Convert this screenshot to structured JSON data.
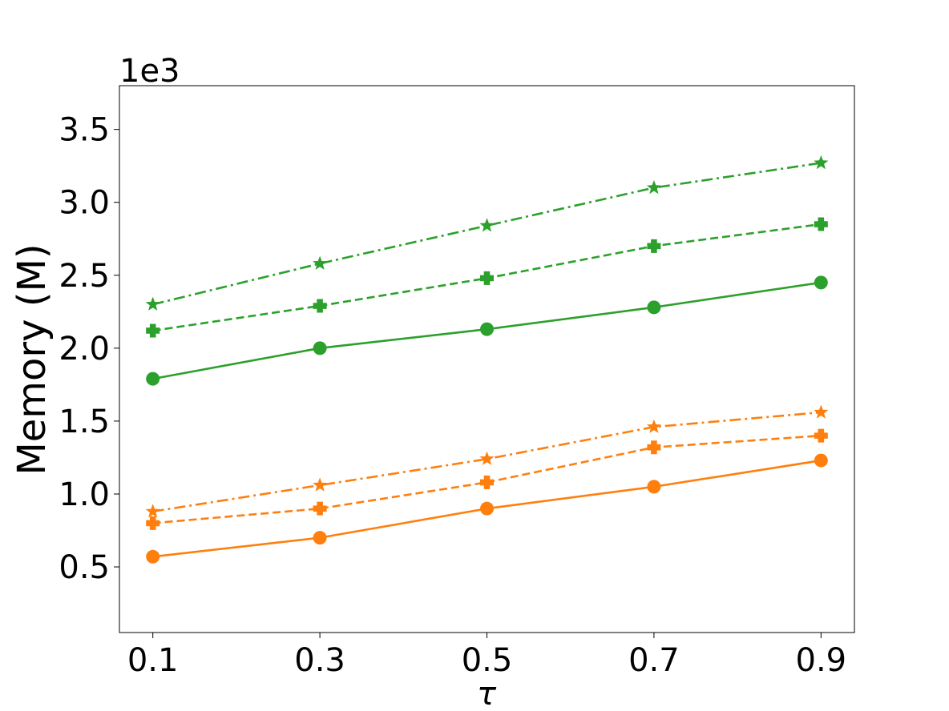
{
  "chart_data": {
    "type": "line",
    "ylabel": "Memory (M)",
    "xlabel": "τ",
    "y_offset_label": "1e3",
    "x": [
      0.1,
      0.3,
      0.5,
      0.7,
      0.9
    ],
    "x_tick_labels": [
      "0.1",
      "0.3",
      "0.5",
      "0.7",
      "0.9"
    ],
    "y_ticks": [
      0.5,
      1.0,
      1.5,
      2.0,
      2.5,
      3.0,
      3.5
    ],
    "y_tick_labels": [
      "0.5",
      "1.0",
      "1.5",
      "2.0",
      "2.5",
      "3.0",
      "3.5"
    ],
    "xlim": [
      0.06,
      0.94
    ],
    "ylim": [
      0.05,
      3.8
    ],
    "y_scale_note": "values in thousands (×1e3)",
    "grid": false,
    "legend": "none",
    "colors": {
      "green": "#2ca02c",
      "orange": "#ff7f0e"
    },
    "series": [
      {
        "color": "#2ca02c",
        "marker": "star",
        "linestyle": "dashdot",
        "values": [
          2.3,
          2.58,
          2.84,
          3.1,
          3.27
        ]
      },
      {
        "color": "#2ca02c",
        "marker": "plus",
        "linestyle": "dashed",
        "values": [
          2.12,
          2.29,
          2.48,
          2.7,
          2.85
        ]
      },
      {
        "color": "#2ca02c",
        "marker": "circle",
        "linestyle": "solid",
        "values": [
          1.79,
          2.0,
          2.13,
          2.28,
          2.45
        ]
      },
      {
        "color": "#ff7f0e",
        "marker": "star",
        "linestyle": "dashdot",
        "values": [
          0.88,
          1.06,
          1.24,
          1.46,
          1.56
        ]
      },
      {
        "color": "#ff7f0e",
        "marker": "plus",
        "linestyle": "dashed",
        "values": [
          0.8,
          0.9,
          1.08,
          1.32,
          1.4
        ]
      },
      {
        "color": "#ff7f0e",
        "marker": "circle",
        "linestyle": "solid",
        "values": [
          0.57,
          0.7,
          0.9,
          1.05,
          1.23
        ]
      }
    ]
  }
}
